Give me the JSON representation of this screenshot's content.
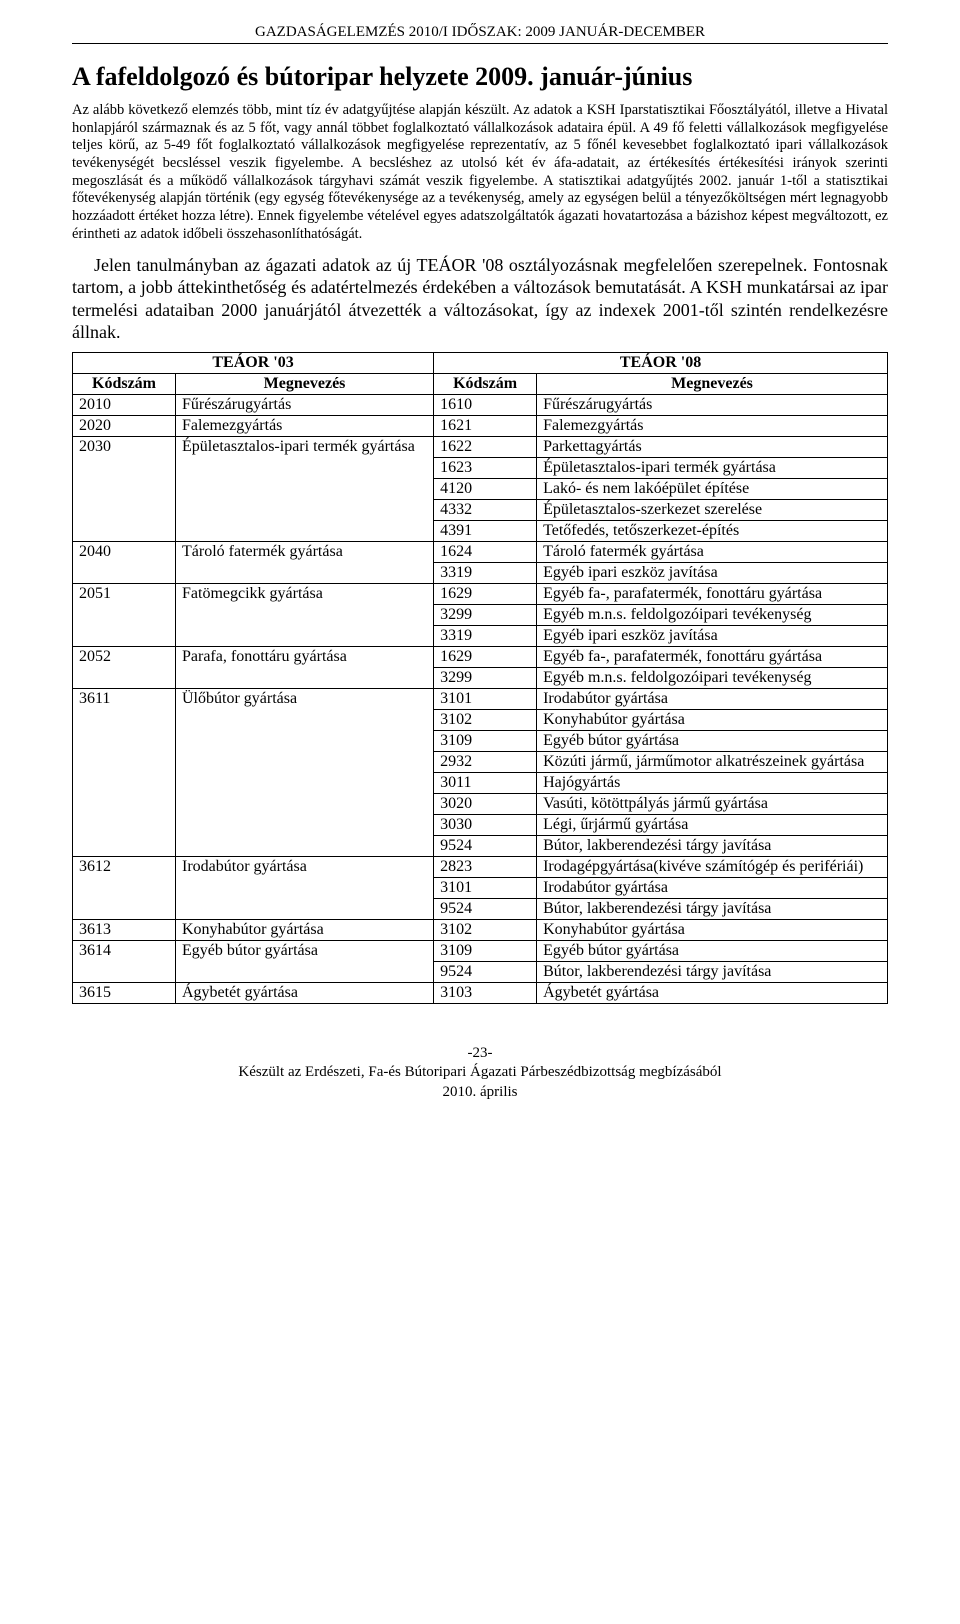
{
  "header": "GAZDASÁGELEMZÉS 2010/I IDŐSZAK: 2009 JANUÁR-DECEMBER",
  "title": "A fafeldolgozó és bútoripar helyzete 2009. január-június",
  "intro": "Az alább következő elemzés több, mint tíz év adatgyűjtése alapján készült. Az adatok a KSH Iparstatisztikai Főosztályától, illetve a Hivatal honlapjáról származnak és az 5 főt, vagy annál többet foglalkoztató vállalkozások adataira épül. A 49 fő feletti vállalkozások megfigyelése teljes körű, az 5-49 főt foglalkoztató vállalkozások megfigyelése reprezentatív, az 5 főnél kevesebbet foglalkoztató ipari vállalkozások tevékenységét becsléssel veszik figyelembe. A becsléshez az utolsó két év áfa-adatait, az értékesítés értékesítési irányok szerinti megoszlását és a működő vállalkozások tárgyhavi számát veszik figyelembe. A statisztikai adatgyűjtés 2002. január 1-től a statisztikai főtevékenység alapján történik (egy egység főtevékenysége az a tevékenység, amely az egységen belül a tényezőköltségen mért legnagyobb hozzáadott értéket hozza létre). Ennek figyelembe vételével egyes adatszolgáltatók ágazati hovatartozása a bázishoz képest megváltozott, ez érintheti az adatok időbeli összehasonlíthatóságát.",
  "body": "Jelen tanulmányban az ágazati adatok az új TEÁOR '08 osztályozásnak megfelelően szerepelnek. Fontosnak tartom, a jobb áttekinthetőség és adatértelmezés érdekében a változások bemutatását. A KSH munkatársai az ipar termelési adataiban 2000 januárjától átvezették a változásokat, így az indexek 2001-től szintén rendelkezésre állnak.",
  "table": {
    "group_headers": [
      "TEÁOR '03",
      "TEÁOR '08"
    ],
    "col_headers": [
      "Kódszám",
      "Megnevezés",
      "Kódszám",
      "Megnevezés"
    ],
    "rows": [
      {
        "c1": "2010",
        "n1": "Fűrészárugyártás",
        "c2": "1610",
        "n2": "Fűrészárugyártás",
        "r1": 1,
        "r2": 1
      },
      {
        "c1": "2020",
        "n1": "Falemezgyártás",
        "c2": "1621",
        "n2": "Falemezgyártás",
        "r1": 1,
        "r2": 1
      },
      {
        "c1": "2030",
        "n1": "Épületasztalos-ipari termék gyártása",
        "c2": "1622",
        "n2": "Parkettagyártás",
        "r1": 5,
        "r2": 5
      },
      {
        "c2": "1623",
        "n2": "Épületasztalos-ipari termék gyártása"
      },
      {
        "c2": "4120",
        "n2": "Lakó- és nem lakóépület építése"
      },
      {
        "c2": "4332",
        "n2": "Épületasztalos-szerkezet szerelése"
      },
      {
        "c2": "4391",
        "n2": "Tetőfedés, tetőszerkezet-építés"
      },
      {
        "c1": "2040",
        "n1": "Tároló fatermék gyártása",
        "c2": "1624",
        "n2": "Tároló fatermék gyártása",
        "r1": 2,
        "r2": 2
      },
      {
        "c2": "3319",
        "n2": "Egyéb ipari eszköz javítása"
      },
      {
        "c1": "2051",
        "n1": "Fatömegcikk gyártása",
        "c2": "1629",
        "n2": "Egyéb fa-, parafatermék, fonottáru gyártása",
        "r1": 3,
        "r2": 3
      },
      {
        "c2": "3299",
        "n2": "Egyéb m.n.s. feldolgozóipari tevékenység"
      },
      {
        "c2": "3319",
        "n2": "Egyéb ipari eszköz javítása"
      },
      {
        "c1": "2052",
        "n1": "Parafa, fonottáru gyártása",
        "c2": "1629",
        "n2": "Egyéb fa-, parafatermék, fonottáru gyártása",
        "r1": 2,
        "r2": 2
      },
      {
        "c2": "3299",
        "n2": "Egyéb m.n.s. feldolgozóipari tevékenység"
      },
      {
        "c1": "3611",
        "n1": "Ülőbútor gyártása",
        "c2": "3101",
        "n2": "Irodabútor gyártása",
        "r1": 8,
        "r2": 8
      },
      {
        "c2": "3102",
        "n2": "Konyhabútor gyártása"
      },
      {
        "c2": "3109",
        "n2": "Egyéb bútor gyártása"
      },
      {
        "c2": "2932",
        "n2": "Közúti jármű, járműmotor alkatrészeinek gyártása"
      },
      {
        "c2": "3011",
        "n2": "Hajógyártás"
      },
      {
        "c2": "3020",
        "n2": "Vasúti, kötöttpályás jármű gyártása"
      },
      {
        "c2": "3030",
        "n2": "Légi, űrjármű gyártása"
      },
      {
        "c2": "9524",
        "n2": "Bútor, lakberendezési tárgy javítása"
      },
      {
        "c1": "3612",
        "n1": "Irodabútor gyártása",
        "c2": "2823",
        "n2": "Irodagépgyártása(kivéve számítógép és perifériái)",
        "r1": 3,
        "r2": 3
      },
      {
        "c2": "3101",
        "n2": "Irodabútor gyártása"
      },
      {
        "c2": "9524",
        "n2": "Bútor, lakberendezési tárgy javítása"
      },
      {
        "c1": "3613",
        "n1": "Konyhabútor gyártása",
        "c2": "3102",
        "n2": "Konyhabútor gyártása",
        "r1": 1,
        "r2": 1
      },
      {
        "c1": "3614",
        "n1": "Egyéb bútor gyártása",
        "c2": "3109",
        "n2": "Egyéb bútor gyártása",
        "r1": 2,
        "r2": 2
      },
      {
        "c2": "9524",
        "n2": "Bútor, lakberendezési tárgy javítása"
      },
      {
        "c1": "3615",
        "n1": "Ágybetét gyártása",
        "c2": "3103",
        "n2": "Ágybetét gyártása",
        "r1": 1,
        "r2": 1
      }
    ]
  },
  "footer": {
    "page": "-23-",
    "line1": "Készült az Erdészeti, Fa-és Bútoripari Ágazati Párbeszédbizottság megbízásából",
    "line2": "2010. április"
  }
}
